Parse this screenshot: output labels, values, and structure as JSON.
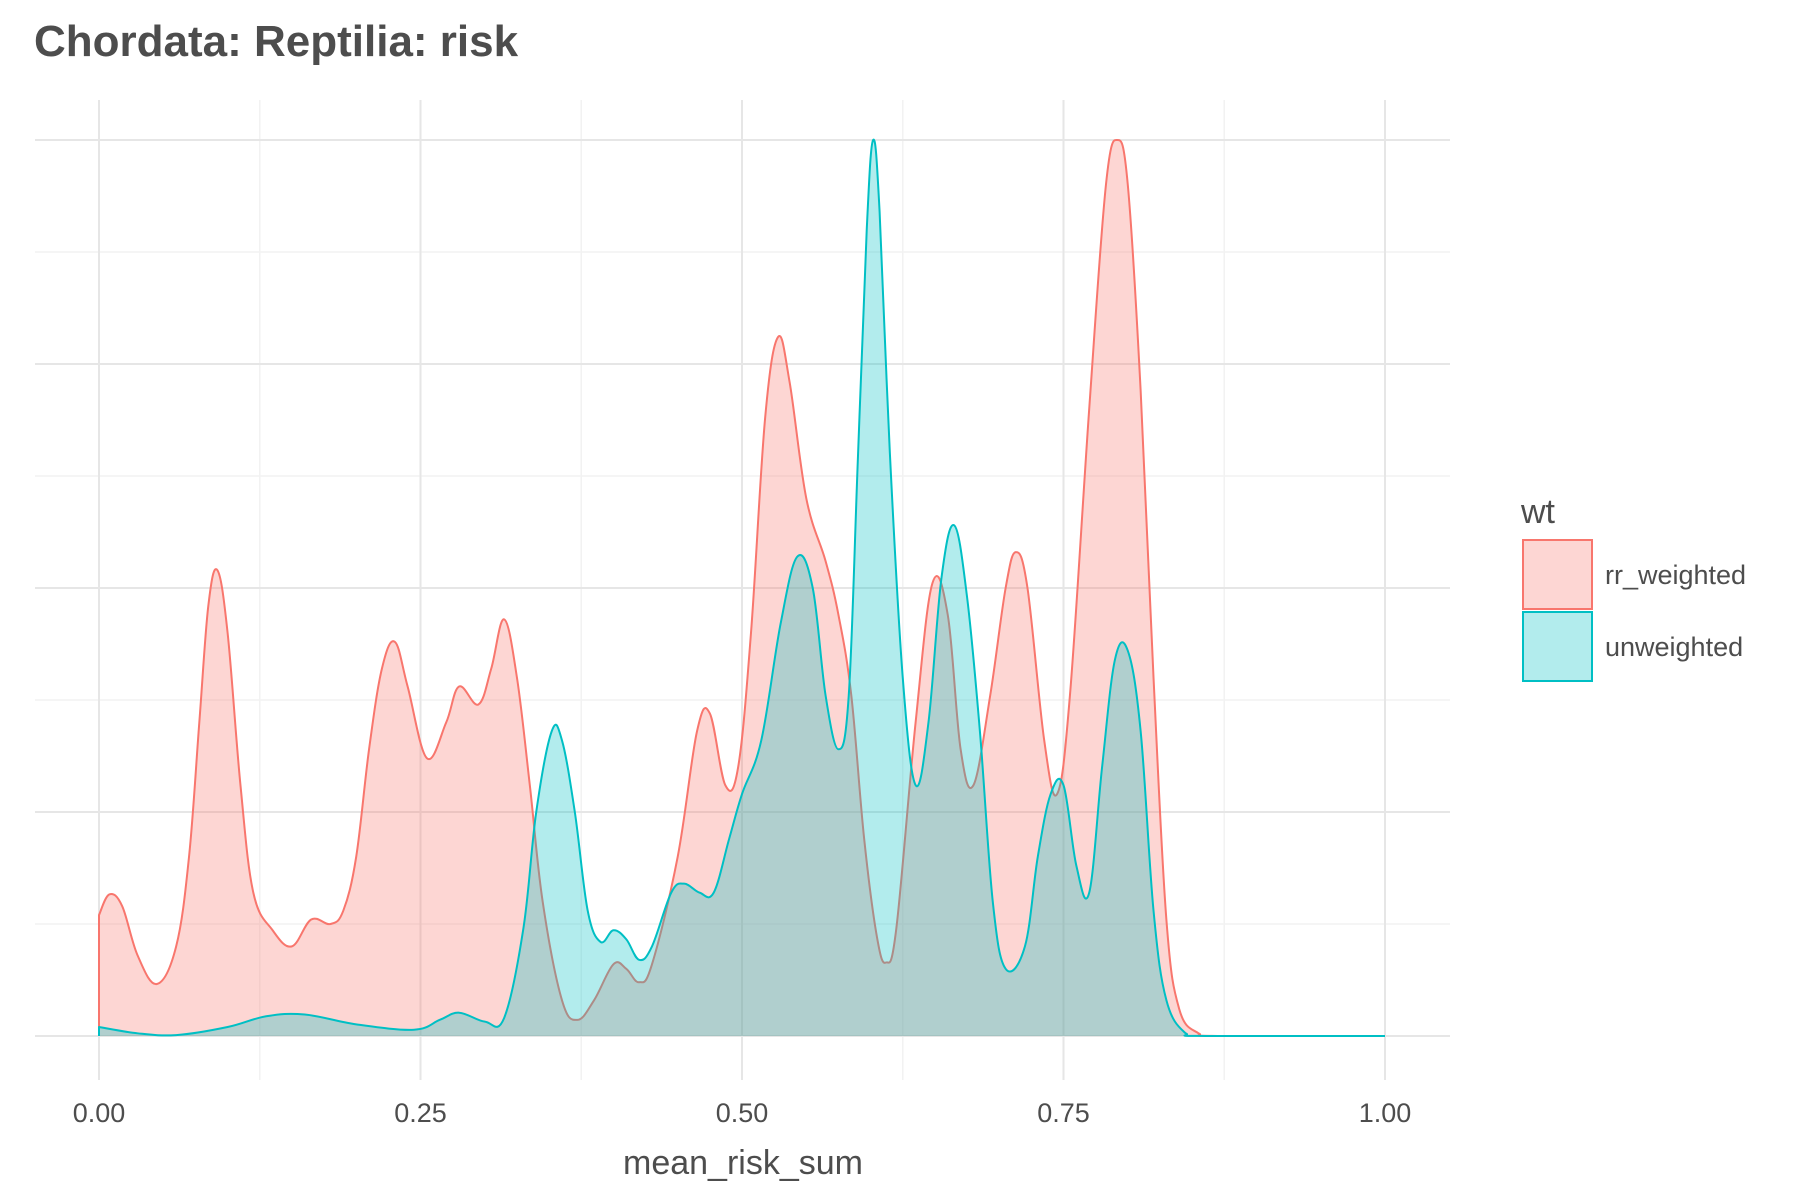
{
  "chart_data": {
    "type": "area",
    "title": "Chordata: Reptilia: risk",
    "xlabel": "mean_risk_sum",
    "ylabel": "",
    "xlim": [
      0,
      1
    ],
    "ylim": [
      0,
      1
    ],
    "x_ticks": [
      0,
      0.25,
      0.5,
      0.75,
      1.0
    ],
    "x_tick_labels": [
      "0.00",
      "0.25",
      "0.50",
      "0.75",
      "1.00"
    ],
    "y_gridlines": [
      0.25,
      0.5,
      0.75,
      1.0
    ],
    "legend_title": "wt",
    "legend_position": "right",
    "series": [
      {
        "name": "rr_weighted",
        "line_color": "#F8766D",
        "fill_color": "#F8766D",
        "points": [
          [
            0.0,
            0.135
          ],
          [
            0.008,
            0.158
          ],
          [
            0.018,
            0.145
          ],
          [
            0.03,
            0.09
          ],
          [
            0.045,
            0.058
          ],
          [
            0.06,
            0.1
          ],
          [
            0.07,
            0.2
          ],
          [
            0.078,
            0.35
          ],
          [
            0.085,
            0.48
          ],
          [
            0.092,
            0.52
          ],
          [
            0.1,
            0.45
          ],
          [
            0.11,
            0.28
          ],
          [
            0.12,
            0.16
          ],
          [
            0.135,
            0.118
          ],
          [
            0.15,
            0.1
          ],
          [
            0.165,
            0.13
          ],
          [
            0.18,
            0.125
          ],
          [
            0.19,
            0.14
          ],
          [
            0.2,
            0.2
          ],
          [
            0.21,
            0.32
          ],
          [
            0.22,
            0.41
          ],
          [
            0.23,
            0.44
          ],
          [
            0.24,
            0.39
          ],
          [
            0.255,
            0.31
          ],
          [
            0.27,
            0.35
          ],
          [
            0.28,
            0.39
          ],
          [
            0.295,
            0.37
          ],
          [
            0.305,
            0.41
          ],
          [
            0.315,
            0.465
          ],
          [
            0.325,
            0.4
          ],
          [
            0.335,
            0.28
          ],
          [
            0.345,
            0.15
          ],
          [
            0.36,
            0.04
          ],
          [
            0.372,
            0.018
          ],
          [
            0.385,
            0.04
          ],
          [
            0.4,
            0.08
          ],
          [
            0.41,
            0.075
          ],
          [
            0.42,
            0.06
          ],
          [
            0.43,
            0.08
          ],
          [
            0.45,
            0.2
          ],
          [
            0.465,
            0.34
          ],
          [
            0.475,
            0.36
          ],
          [
            0.487,
            0.28
          ],
          [
            0.497,
            0.3
          ],
          [
            0.507,
            0.45
          ],
          [
            0.518,
            0.69
          ],
          [
            0.528,
            0.78
          ],
          [
            0.537,
            0.73
          ],
          [
            0.55,
            0.6
          ],
          [
            0.565,
            0.53
          ],
          [
            0.575,
            0.47
          ],
          [
            0.585,
            0.38
          ],
          [
            0.595,
            0.22
          ],
          [
            0.605,
            0.11
          ],
          [
            0.612,
            0.082
          ],
          [
            0.62,
            0.12
          ],
          [
            0.635,
            0.35
          ],
          [
            0.648,
            0.505
          ],
          [
            0.66,
            0.47
          ],
          [
            0.67,
            0.32
          ],
          [
            0.68,
            0.28
          ],
          [
            0.693,
            0.38
          ],
          [
            0.705,
            0.5
          ],
          [
            0.713,
            0.54
          ],
          [
            0.722,
            0.5
          ],
          [
            0.735,
            0.33
          ],
          [
            0.745,
            0.27
          ],
          [
            0.755,
            0.38
          ],
          [
            0.77,
            0.7
          ],
          [
            0.783,
            0.95
          ],
          [
            0.792,
            1.0
          ],
          [
            0.8,
            0.95
          ],
          [
            0.81,
            0.72
          ],
          [
            0.82,
            0.4
          ],
          [
            0.83,
            0.13
          ],
          [
            0.84,
            0.03
          ],
          [
            0.855,
            0.003
          ],
          [
            0.87,
            0.0
          ],
          [
            1.0,
            0.0
          ]
        ]
      },
      {
        "name": "unweighted",
        "line_color": "#00BFC4",
        "fill_color": "#00BFC4",
        "points": [
          [
            0.0,
            0.01
          ],
          [
            0.03,
            0.003
          ],
          [
            0.06,
            0.001
          ],
          [
            0.1,
            0.01
          ],
          [
            0.13,
            0.022
          ],
          [
            0.16,
            0.024
          ],
          [
            0.2,
            0.013
          ],
          [
            0.245,
            0.007
          ],
          [
            0.265,
            0.018
          ],
          [
            0.28,
            0.026
          ],
          [
            0.3,
            0.016
          ],
          [
            0.315,
            0.02
          ],
          [
            0.33,
            0.12
          ],
          [
            0.34,
            0.25
          ],
          [
            0.352,
            0.34
          ],
          [
            0.36,
            0.33
          ],
          [
            0.37,
            0.25
          ],
          [
            0.38,
            0.14
          ],
          [
            0.39,
            0.105
          ],
          [
            0.4,
            0.118
          ],
          [
            0.41,
            0.108
          ],
          [
            0.42,
            0.085
          ],
          [
            0.43,
            0.1
          ],
          [
            0.445,
            0.16
          ],
          [
            0.455,
            0.17
          ],
          [
            0.467,
            0.16
          ],
          [
            0.478,
            0.16
          ],
          [
            0.49,
            0.22
          ],
          [
            0.5,
            0.27
          ],
          [
            0.515,
            0.33
          ],
          [
            0.53,
            0.46
          ],
          [
            0.543,
            0.535
          ],
          [
            0.555,
            0.5
          ],
          [
            0.565,
            0.38
          ],
          [
            0.575,
            0.32
          ],
          [
            0.583,
            0.38
          ],
          [
            0.59,
            0.64
          ],
          [
            0.597,
            0.9
          ],
          [
            0.602,
            1.0
          ],
          [
            0.607,
            0.92
          ],
          [
            0.615,
            0.65
          ],
          [
            0.625,
            0.4
          ],
          [
            0.635,
            0.28
          ],
          [
            0.645,
            0.35
          ],
          [
            0.655,
            0.51
          ],
          [
            0.665,
            0.57
          ],
          [
            0.675,
            0.49
          ],
          [
            0.685,
            0.34
          ],
          [
            0.695,
            0.15
          ],
          [
            0.705,
            0.075
          ],
          [
            0.72,
            0.1
          ],
          [
            0.73,
            0.2
          ],
          [
            0.74,
            0.27
          ],
          [
            0.75,
            0.28
          ],
          [
            0.76,
            0.19
          ],
          [
            0.77,
            0.16
          ],
          [
            0.78,
            0.3
          ],
          [
            0.79,
            0.42
          ],
          [
            0.8,
            0.43
          ],
          [
            0.81,
            0.34
          ],
          [
            0.82,
            0.14
          ],
          [
            0.83,
            0.04
          ],
          [
            0.845,
            0.003
          ],
          [
            0.86,
            0.0
          ],
          [
            1.0,
            0.0
          ]
        ]
      }
    ]
  }
}
